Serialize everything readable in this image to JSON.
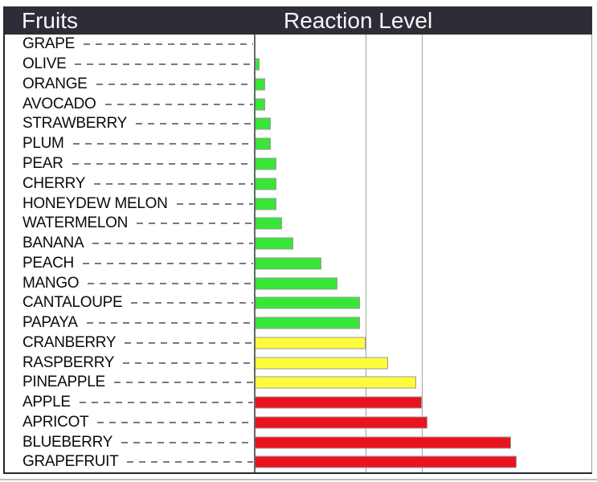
{
  "header": {
    "left": "Fruits",
    "right": "Reaction Level"
  },
  "colors": {
    "header_bg": "#2d2d37",
    "header_text": "#f8f8f8",
    "panel_border": "#26262e",
    "baseline": "#666666",
    "gridline": "#a0a0a0",
    "leader": "#7a7a7a",
    "bar_border": "#9a9a9a",
    "green": "#37e637",
    "yellow": "#fcfc3d",
    "red": "#eb1220",
    "bottom_edge": "#b9bcc2"
  },
  "chart_data": {
    "type": "bar",
    "orientation": "horizontal",
    "title": "Reaction Level",
    "category_axis_label": "Fruits",
    "value_axis_label": "Reaction Level",
    "xlim": [
      0,
      6.05
    ],
    "gridlines_x": [
      2,
      3
    ],
    "grid": "vertical-threshold-lines",
    "legend": "none",
    "categories": [
      "GRAPE",
      "OLIVE",
      "ORANGE",
      "AVOCADO",
      "STRAWBERRY",
      "PLUM",
      "PEAR",
      "CHERRY",
      "HONEYDEW MELON",
      "WATERMELON",
      "BANANA",
      "PEACH",
      "MANGO",
      "CANTALOUPE",
      "PAPAYA",
      "CRANBERRY",
      "RASPBERRY",
      "PINEAPPLE",
      "APPLE",
      "APRICOT",
      "BLUEBERRY",
      "GRAPEFRUIT"
    ],
    "values": [
      0,
      0.1,
      0.2,
      0.2,
      0.3,
      0.3,
      0.4,
      0.4,
      0.4,
      0.5,
      0.7,
      1.2,
      1.5,
      1.9,
      1.9,
      2.0,
      2.4,
      2.9,
      3.0,
      3.1,
      4.6,
      4.7
    ],
    "bar_colors": [
      "green",
      "green",
      "green",
      "green",
      "green",
      "green",
      "green",
      "green",
      "green",
      "green",
      "green",
      "green",
      "green",
      "green",
      "green",
      "yellow",
      "yellow",
      "yellow",
      "red",
      "red",
      "red",
      "red"
    ]
  }
}
